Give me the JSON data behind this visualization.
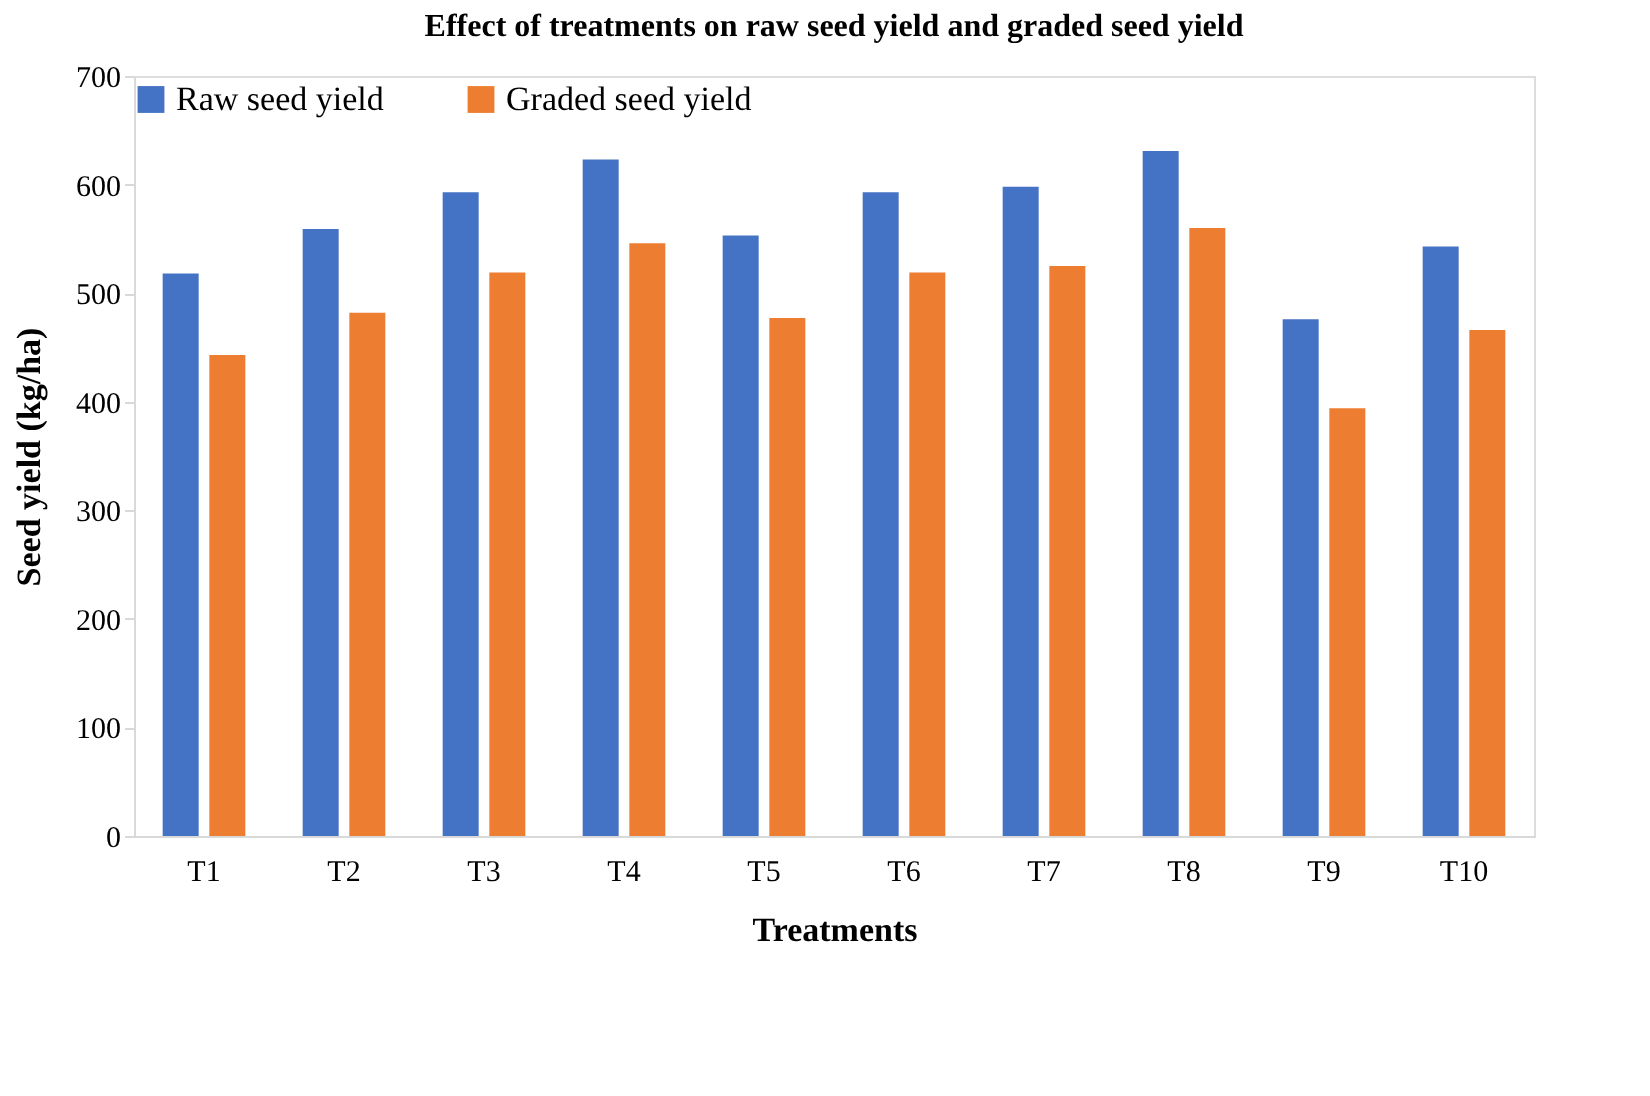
{
  "chart_data": {
    "type": "bar",
    "title": "Effect of treatments on raw seed yield and graded seed yield",
    "xlabel": "Treatments",
    "ylabel": "Seed yield (kg/ha)",
    "categories": [
      "T1",
      "T2",
      "T3",
      "T4",
      "T5",
      "T6",
      "T7",
      "T8",
      "T9",
      "T10"
    ],
    "series": [
      {
        "name": "Raw seed yield",
        "color": "#4472c4",
        "values": [
          518,
          559,
          593,
          623,
          553,
          593,
          598,
          631,
          476,
          543
        ]
      },
      {
        "name": "Graded seed yield",
        "color": "#ed7d31",
        "values": [
          443,
          482,
          519,
          546,
          477,
          519,
          525,
          560,
          394,
          466
        ]
      }
    ],
    "ylim": [
      0,
      700
    ],
    "yticks": [
      0,
      100,
      200,
      300,
      400,
      500,
      600,
      700
    ],
    "grid": false,
    "legend": "top"
  }
}
